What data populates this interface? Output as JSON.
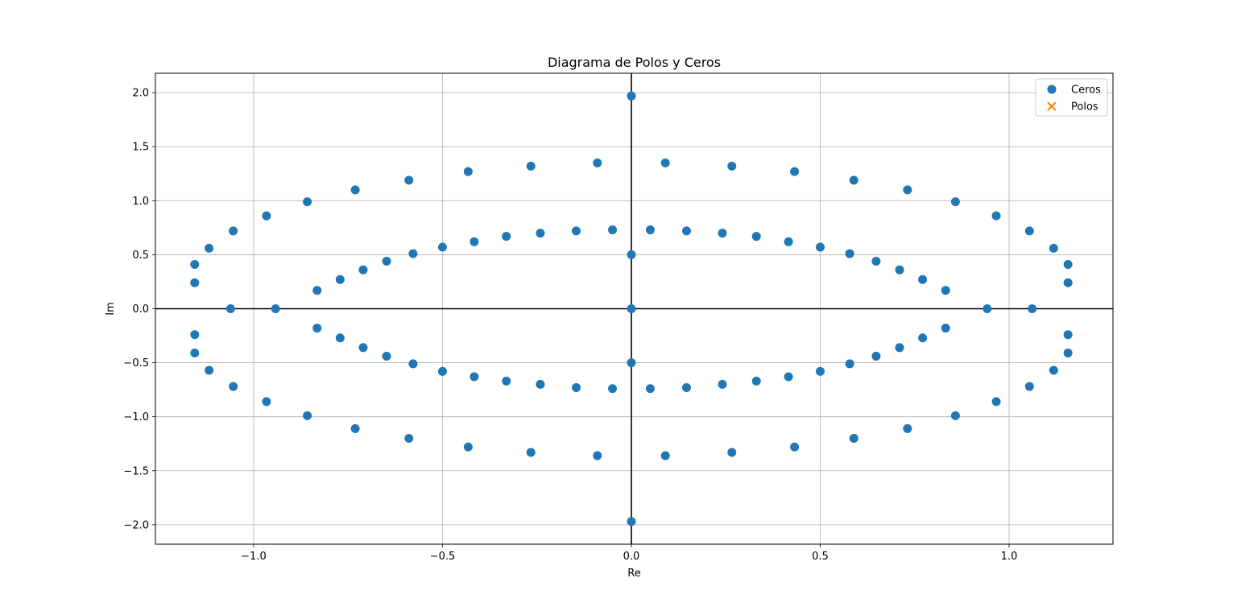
{
  "chart_data": {
    "type": "scatter",
    "title": "Diagrama de Polos y Ceros",
    "xlabel": "Re",
    "ylabel": "Im",
    "xlim": [
      -1.26,
      1.275
    ],
    "ylim": [
      -2.18,
      2.18
    ],
    "xticks": [
      -1.0,
      -0.5,
      0.0,
      0.5,
      1.0
    ],
    "xtick_labels": [
      "−1.0",
      "−0.5",
      "0.0",
      "0.5",
      "1.0"
    ],
    "yticks": [
      2.0,
      1.5,
      1.0,
      0.5,
      0.0,
      -0.5,
      -1.0,
      -1.5,
      -2.0
    ],
    "ytick_labels": [
      "2.0",
      "1.5",
      "1.0",
      "0.5",
      "0.0",
      "−0.5",
      "−1.0",
      "−1.5",
      "−2.0"
    ],
    "grid": true,
    "legend_position": "top-right",
    "axis_lines_at_zero": true,
    "series": [
      {
        "name": "Ceros",
        "marker": "circle",
        "color": "#1f77b4",
        "points": [
          [
            0.0,
            1.97
          ],
          [
            0.09,
            1.35
          ],
          [
            0.266,
            1.32
          ],
          [
            0.432,
            1.27
          ],
          [
            0.589,
            1.19
          ],
          [
            0.731,
            1.1
          ],
          [
            0.858,
            0.99
          ],
          [
            0.966,
            0.86
          ],
          [
            1.054,
            0.72
          ],
          [
            1.118,
            0.56
          ],
          [
            1.156,
            0.41
          ],
          [
            1.156,
            0.24
          ],
          [
            1.061,
            0.0
          ],
          [
            1.156,
            -0.24
          ],
          [
            1.156,
            -0.41
          ],
          [
            1.118,
            -0.57
          ],
          [
            1.054,
            -0.72
          ],
          [
            0.966,
            -0.86
          ],
          [
            0.858,
            -0.99
          ],
          [
            0.731,
            -1.11
          ],
          [
            0.589,
            -1.2
          ],
          [
            0.432,
            -1.28
          ],
          [
            0.266,
            -1.33
          ],
          [
            0.09,
            -1.36
          ],
          [
            0.0,
            -1.97
          ],
          [
            -0.09,
            -1.36
          ],
          [
            -0.266,
            -1.33
          ],
          [
            -0.432,
            -1.28
          ],
          [
            -0.589,
            -1.2
          ],
          [
            -0.731,
            -1.11
          ],
          [
            -0.858,
            -0.99
          ],
          [
            -0.966,
            -0.86
          ],
          [
            -1.054,
            -0.72
          ],
          [
            -1.118,
            -0.57
          ],
          [
            -1.156,
            -0.41
          ],
          [
            -1.156,
            -0.24
          ],
          [
            -1.061,
            0.0
          ],
          [
            -1.156,
            0.24
          ],
          [
            -1.156,
            0.41
          ],
          [
            -1.118,
            0.56
          ],
          [
            -1.054,
            0.72
          ],
          [
            -0.966,
            0.86
          ],
          [
            -0.858,
            0.99
          ],
          [
            -0.731,
            1.1
          ],
          [
            -0.589,
            1.19
          ],
          [
            -0.432,
            1.27
          ],
          [
            -0.266,
            1.32
          ],
          [
            -0.09,
            1.35
          ],
          [
            0.0,
            0.5
          ],
          [
            0.0,
            0.0
          ],
          [
            0.0,
            -0.5
          ],
          [
            0.05,
            0.73
          ],
          [
            0.146,
            0.72
          ],
          [
            0.241,
            0.7
          ],
          [
            0.331,
            0.67
          ],
          [
            0.416,
            0.62
          ],
          [
            0.5,
            0.57
          ],
          [
            0.578,
            0.51
          ],
          [
            0.648,
            0.44
          ],
          [
            0.71,
            0.36
          ],
          [
            0.771,
            0.27
          ],
          [
            0.832,
            0.17
          ],
          [
            0.942,
            0.0
          ],
          [
            0.832,
            -0.18
          ],
          [
            0.771,
            -0.27
          ],
          [
            0.71,
            -0.36
          ],
          [
            0.648,
            -0.44
          ],
          [
            0.578,
            -0.51
          ],
          [
            0.5,
            -0.58
          ],
          [
            0.416,
            -0.63
          ],
          [
            0.331,
            -0.67
          ],
          [
            0.241,
            -0.7
          ],
          [
            0.146,
            -0.73
          ],
          [
            0.05,
            -0.74
          ],
          [
            -0.05,
            -0.74
          ],
          [
            -0.146,
            -0.73
          ],
          [
            -0.241,
            -0.7
          ],
          [
            -0.331,
            -0.67
          ],
          [
            -0.416,
            -0.63
          ],
          [
            -0.5,
            -0.58
          ],
          [
            -0.578,
            -0.51
          ],
          [
            -0.648,
            -0.44
          ],
          [
            -0.71,
            -0.36
          ],
          [
            -0.771,
            -0.27
          ],
          [
            -0.832,
            -0.18
          ],
          [
            -0.942,
            0.0
          ],
          [
            -0.832,
            0.17
          ],
          [
            -0.771,
            0.27
          ],
          [
            -0.71,
            0.36
          ],
          [
            -0.648,
            0.44
          ],
          [
            -0.578,
            0.51
          ],
          [
            -0.5,
            0.57
          ],
          [
            -0.416,
            0.62
          ],
          [
            -0.331,
            0.67
          ],
          [
            -0.241,
            0.7
          ],
          [
            -0.146,
            0.72
          ],
          [
            -0.05,
            0.73
          ]
        ]
      },
      {
        "name": "Polos",
        "marker": "x",
        "color": "#ff7f0e",
        "points": []
      }
    ]
  }
}
